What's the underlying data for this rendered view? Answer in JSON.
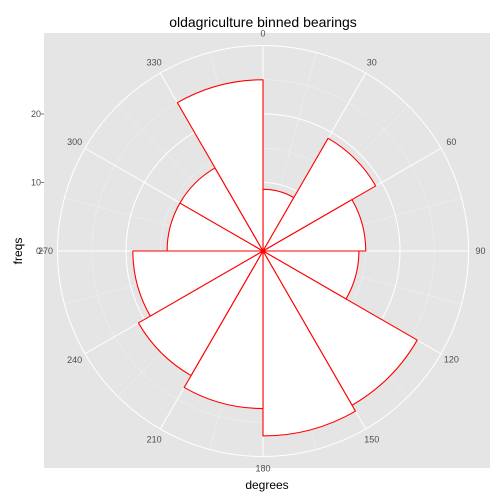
{
  "chart_data": {
    "type": "bar",
    "coord": "polar",
    "title": "oldagriculture binned bearings",
    "xlabel": "degrees",
    "ylabel": "freqs",
    "bin_width": 30,
    "angle_ticks": [
      "0",
      "30",
      "60",
      "90",
      "120",
      "150",
      "180",
      "210",
      "240",
      "270",
      "300",
      "330"
    ],
    "radial_ticks": [
      0,
      10,
      20
    ],
    "radial_tick_labels": [
      "0",
      "10",
      "20"
    ],
    "ylim": [
      0,
      30
    ],
    "grid": true,
    "colors": {
      "panel": "#e5e5e5",
      "grid": "#ffffff",
      "bar_fill": "#ffffff",
      "bar_stroke": "#ff0000"
    },
    "bins": [
      {
        "start": 0,
        "value": 9
      },
      {
        "start": 30,
        "value": 19
      },
      {
        "start": 60,
        "value": 15
      },
      {
        "start": 90,
        "value": 14
      },
      {
        "start": 120,
        "value": 26
      },
      {
        "start": 150,
        "value": 27
      },
      {
        "start": 180,
        "value": 23
      },
      {
        "start": 210,
        "value": 21
      },
      {
        "start": 240,
        "value": 19
      },
      {
        "start": 270,
        "value": 14
      },
      {
        "start": 300,
        "value": 14
      },
      {
        "start": 330,
        "value": 25
      }
    ]
  }
}
